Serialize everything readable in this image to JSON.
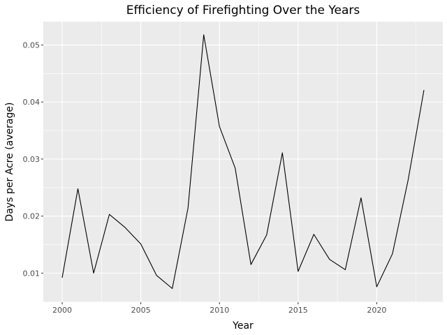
{
  "chart_data": {
    "type": "line",
    "title": "Efficiency of Firefighting Over the Years",
    "xlabel": "Year",
    "ylabel": "Days per Acre (average)",
    "xlim": [
      1998.8,
      2024.2
    ],
    "ylim": [
      0.0049,
      0.0541
    ],
    "x_ticks": [
      2000,
      2005,
      2010,
      2015,
      2020
    ],
    "y_ticks": [
      0.01,
      0.02,
      0.03,
      0.04,
      0.05
    ],
    "x_tick_labels": [
      "2000",
      "2005",
      "2010",
      "2015",
      "2020"
    ],
    "y_tick_labels": [
      "0.01",
      "0.02",
      "0.03",
      "0.04",
      "0.05"
    ],
    "grid": true,
    "line_color": "#000000",
    "panel_color": "#ebebeb",
    "grid_color": "#ffffff",
    "x": [
      2000,
      2001,
      2002,
      2003,
      2004,
      2005,
      2006,
      2007,
      2008,
      2009,
      2010,
      2011,
      2012,
      2013,
      2014,
      2015,
      2016,
      2017,
      2018,
      2019,
      2020,
      2021,
      2022,
      2023
    ],
    "values": [
      0.0092,
      0.0248,
      0.01,
      0.0203,
      0.018,
      0.0151,
      0.0096,
      0.0073,
      0.0214,
      0.0518,
      0.0357,
      0.0284,
      0.0115,
      0.0167,
      0.0311,
      0.0103,
      0.0168,
      0.0124,
      0.0106,
      0.0232,
      0.0076,
      0.0134,
      0.0264,
      0.0421
    ]
  }
}
